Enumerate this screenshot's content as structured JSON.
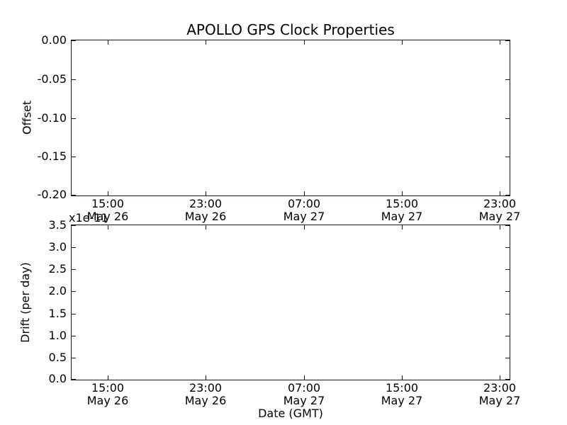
{
  "figure": {
    "background": "#ffffff",
    "spine_color": "#15152e",
    "text_color": "#000000",
    "title": "APOLLO GPS Clock Properties"
  },
  "chart_data": [
    {
      "type": "line",
      "title": "APOLLO GPS Clock Properties",
      "ylabel": "Offset",
      "ylim": [
        -0.2,
        0.0
      ],
      "yticks": [
        "0.00",
        "-0.05",
        "-0.10",
        "-0.15",
        "-0.20"
      ],
      "xticks": [
        {
          "time": "15:00",
          "date": "May 26"
        },
        {
          "time": "23:00",
          "date": "May 26"
        },
        {
          "time": "07:00",
          "date": "May 27"
        },
        {
          "time": "15:00",
          "date": "May 27"
        },
        {
          "time": "23:00",
          "date": "May 27"
        }
      ],
      "grid": false,
      "legend": false,
      "series": []
    },
    {
      "type": "line",
      "xlabel": "Date (GMT)",
      "ylabel": "Drift (per day)",
      "y_offset_text": "x1e-11",
      "ylim": [
        0.0,
        3.5
      ],
      "yticks": [
        "3.5",
        "3.0",
        "2.5",
        "2.0",
        "1.5",
        "1.0",
        "0.5",
        "0.0"
      ],
      "xticks": [
        {
          "time": "15:00",
          "date": "May 26"
        },
        {
          "time": "23:00",
          "date": "May 26"
        },
        {
          "time": "07:00",
          "date": "May 27"
        },
        {
          "time": "15:00",
          "date": "May 27"
        },
        {
          "time": "23:00",
          "date": "May 27"
        }
      ],
      "grid": false,
      "legend": false,
      "series": []
    }
  ]
}
